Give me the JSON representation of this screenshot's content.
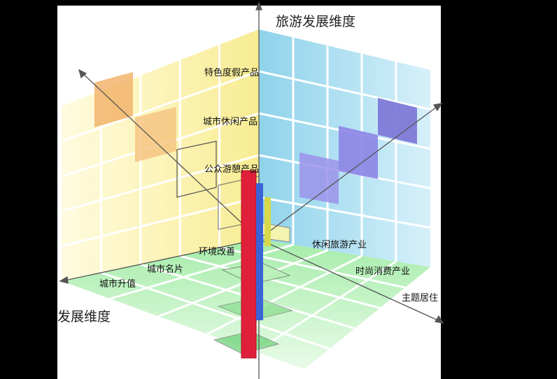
{
  "axes": {
    "vertical_title": "旅游发展维度",
    "left_title_fragment": "发展维度"
  },
  "labels": {
    "product_1": "特色度假产品",
    "product_2": "城市休闲产品",
    "product_3": "公众游憩产品",
    "urban_1": "环境改善",
    "urban_2": "城市名片",
    "urban_3": "城市升值",
    "industry_1": "休闲旅游产业",
    "industry_2": "时尚消费产业",
    "industry_3": "主题居住"
  },
  "colors": {
    "backdrop": "#000000",
    "canvas": "#ffffff",
    "yellow_wall": "#fbf3a6",
    "blue_wall": "#8fd3ea",
    "green_floor": "#b9f1b8",
    "orange_cell": "#f2b46c",
    "purple_cell": "#7f7ad8",
    "red_bar": "#e0203a",
    "blue_bar": "#3a63d6",
    "yellow_bar": "#d7d84a"
  }
}
